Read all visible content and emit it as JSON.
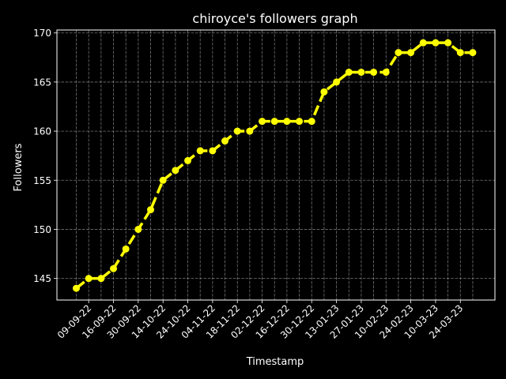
{
  "chart_data": {
    "type": "line",
    "title": "chiroyce's followers graph",
    "xlabel": "Timestamp",
    "ylabel": "Followers",
    "ylim": [
      142.8,
      170.3
    ],
    "yticks": [
      145,
      150,
      155,
      160,
      165,
      170
    ],
    "xtick_labels": [
      "09-09-22",
      "16-09-22",
      "30-09-22",
      "14-10-22",
      "24-10-22",
      "04-11-22",
      "18-11-22",
      "02-12-22",
      "16-12-22",
      "30-12-22",
      "13-01-23",
      "27-01-23",
      "10-02-23",
      "24-02-23",
      "10-03-23",
      "24-03-23"
    ],
    "grid": true,
    "background": "#000000",
    "series_color": "#ffff00",
    "values": [
      144,
      145,
      145,
      146,
      148,
      150,
      152,
      155,
      156,
      157,
      158,
      158,
      159,
      160,
      160,
      161,
      161,
      161,
      161,
      161,
      164,
      165,
      166,
      166,
      166,
      166,
      168,
      168,
      169,
      169,
      169,
      168,
      168
    ]
  }
}
